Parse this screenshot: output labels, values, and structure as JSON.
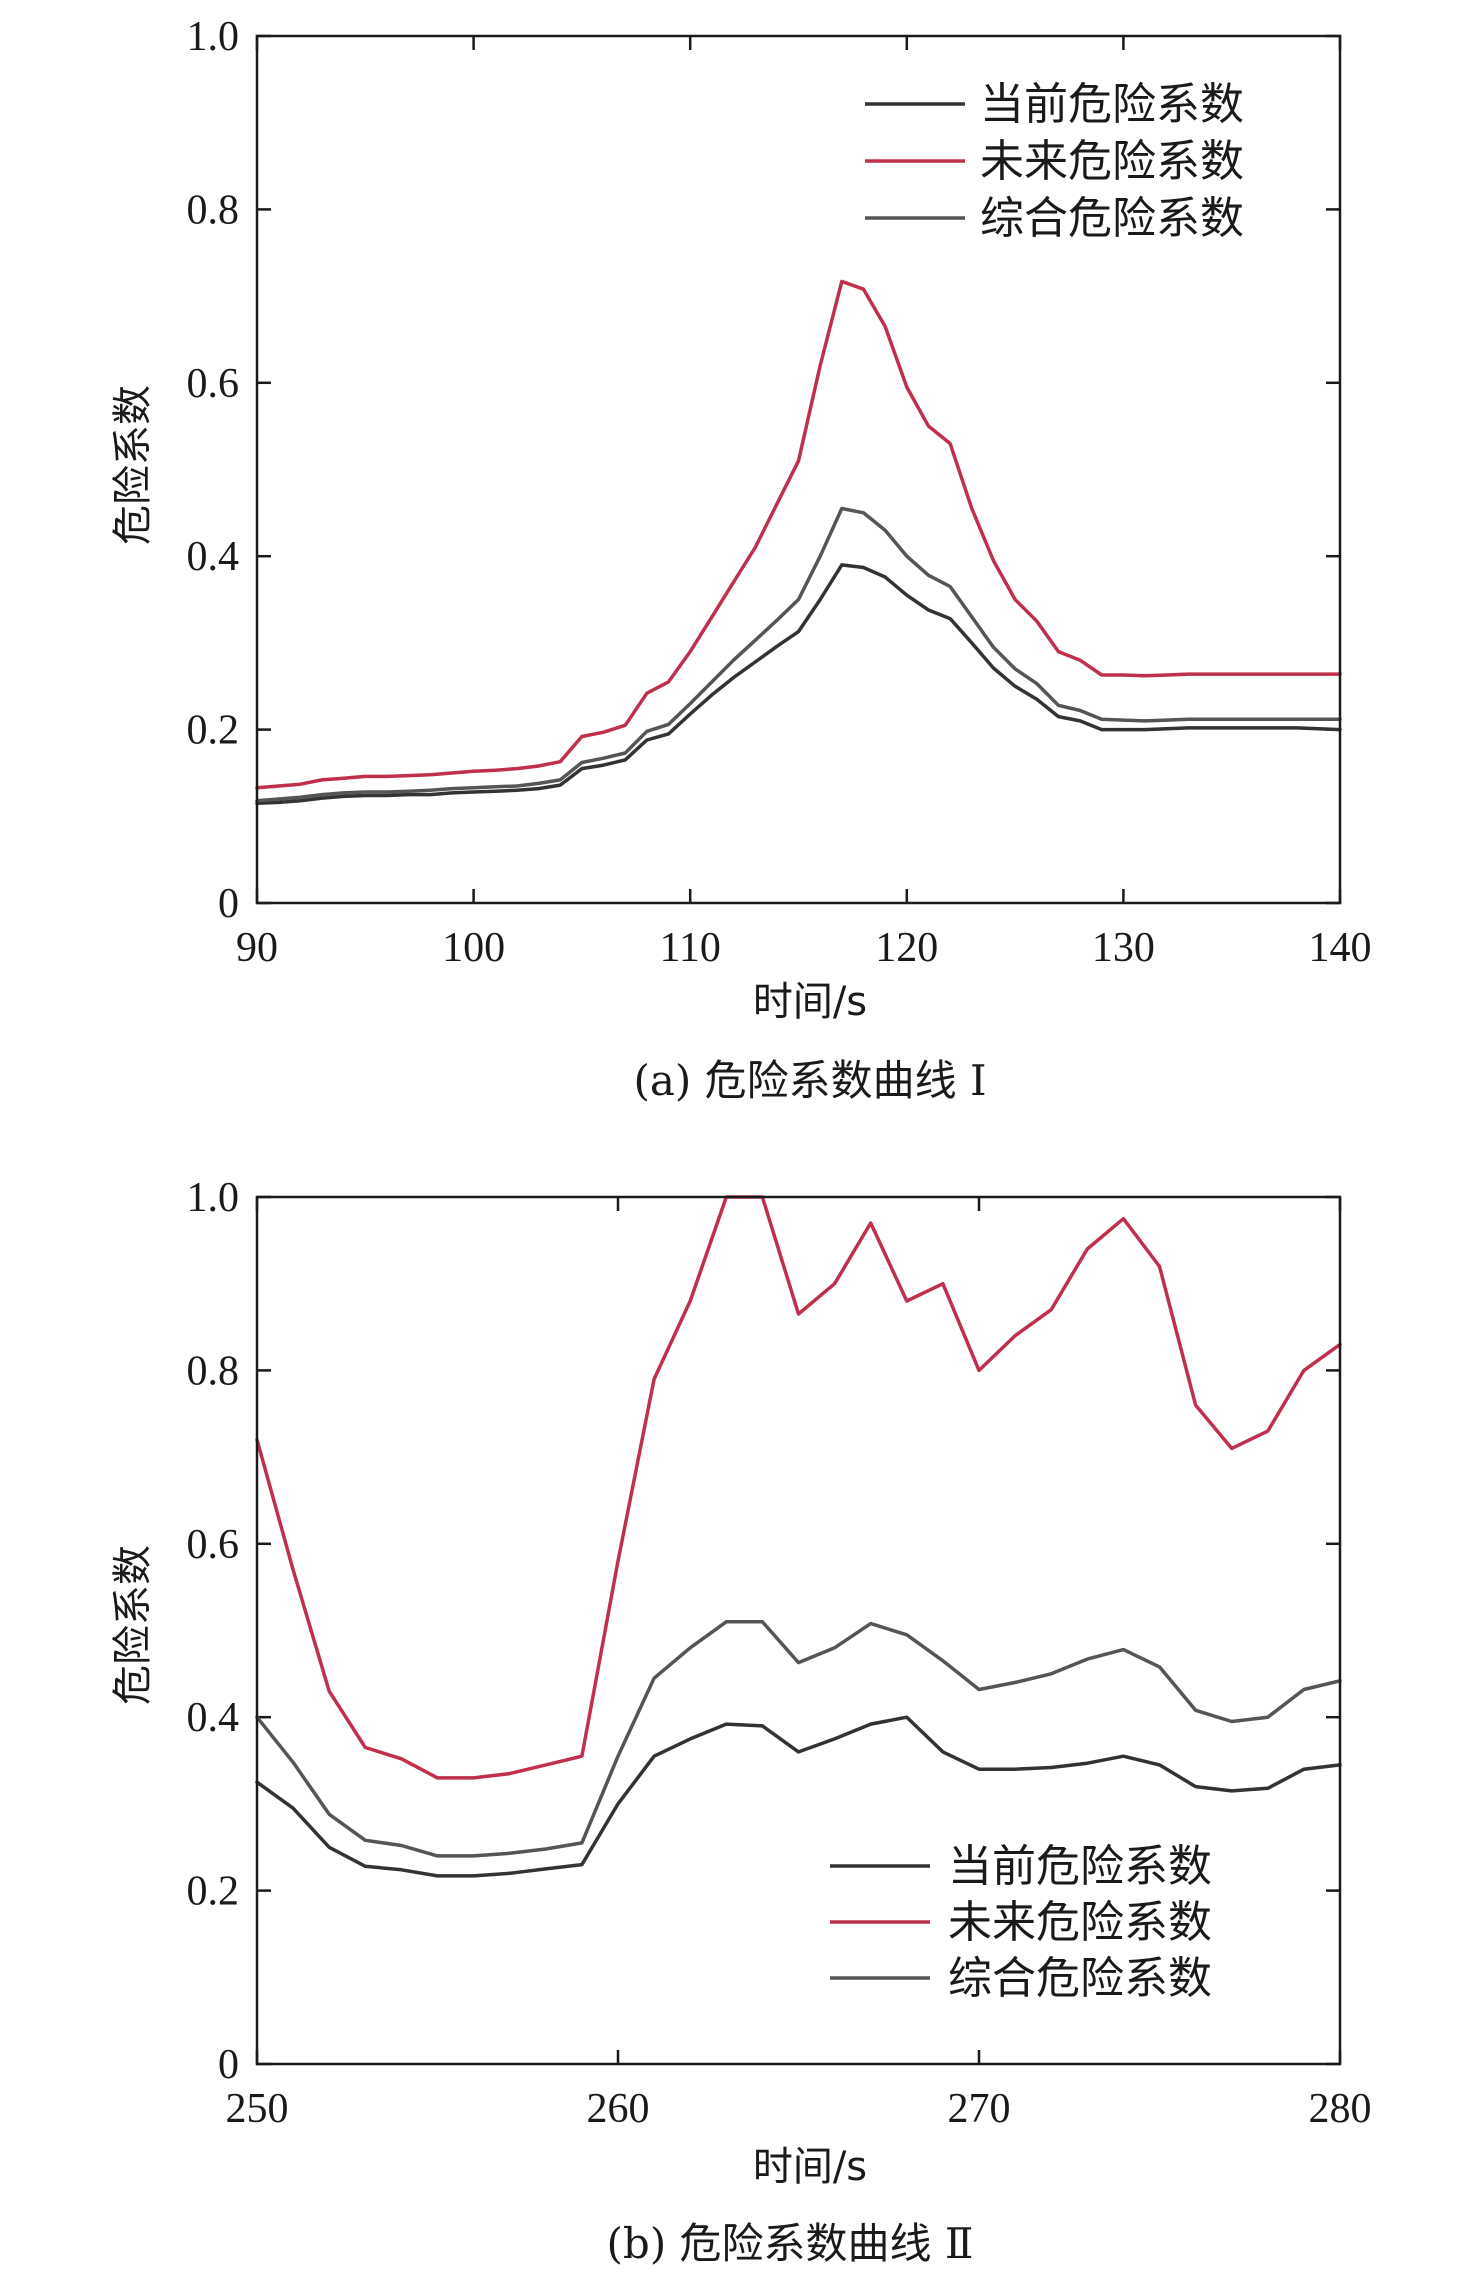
{
  "chart_data": [
    {
      "type": "line",
      "caption": "(a) 危险系数曲线 Ⅰ",
      "xlabel": "时间/s",
      "ylabel": "危险系数",
      "xlim": [
        90,
        140
      ],
      "ylim": [
        0,
        1.0
      ],
      "xticks": [
        "90",
        "100",
        "110",
        "120",
        "130",
        "140"
      ],
      "yticks": [
        "0",
        "0.2",
        "0.4",
        "0.6",
        "0.8",
        "1.0"
      ],
      "legend_position": "top-right",
      "x": [
        90,
        91,
        92,
        93,
        94,
        95,
        96,
        97,
        98,
        99,
        100,
        101,
        102,
        103,
        104,
        105,
        106,
        107,
        108,
        109,
        110,
        111,
        112,
        113,
        114,
        115,
        116,
        117,
        118,
        119,
        120,
        121,
        122,
        123,
        124,
        125,
        126,
        127,
        128,
        129,
        130,
        131,
        132,
        133,
        134,
        135,
        136,
        137,
        138,
        139,
        140
      ],
      "series": [
        {
          "name": "当前危险系数",
          "color": "#333333",
          "values": [
            0.115,
            0.116,
            0.118,
            0.121,
            0.123,
            0.124,
            0.124,
            0.125,
            0.125,
            0.127,
            0.128,
            0.129,
            0.13,
            0.132,
            0.136,
            0.155,
            0.159,
            0.165,
            0.188,
            0.195,
            0.218,
            0.24,
            0.26,
            0.278,
            0.296,
            0.313,
            0.35,
            0.39,
            0.387,
            0.376,
            0.355,
            0.338,
            0.328,
            0.3,
            0.271,
            0.25,
            0.235,
            0.215,
            0.21,
            0.2,
            0.2,
            0.2,
            0.201,
            0.202,
            0.202,
            0.202,
            0.202,
            0.202,
            0.202,
            0.201,
            0.2
          ]
        },
        {
          "name": "未来危险系数",
          "color": "#c0304c",
          "values": [
            0.133,
            0.135,
            0.137,
            0.142,
            0.144,
            0.146,
            0.146,
            0.147,
            0.148,
            0.15,
            0.152,
            0.153,
            0.155,
            0.158,
            0.163,
            0.192,
            0.197,
            0.205,
            0.242,
            0.255,
            0.29,
            0.33,
            0.37,
            0.41,
            0.46,
            0.51,
            0.62,
            0.717,
            0.708,
            0.665,
            0.595,
            0.55,
            0.53,
            0.455,
            0.395,
            0.35,
            0.325,
            0.29,
            0.28,
            0.263,
            0.263,
            0.262,
            0.263,
            0.264,
            0.264,
            0.264,
            0.264,
            0.264,
            0.264,
            0.264,
            0.264
          ]
        },
        {
          "name": "综合危险系数",
          "color": "#555555",
          "values": [
            0.118,
            0.12,
            0.122,
            0.125,
            0.127,
            0.128,
            0.128,
            0.129,
            0.13,
            0.132,
            0.133,
            0.134,
            0.135,
            0.138,
            0.142,
            0.162,
            0.167,
            0.173,
            0.198,
            0.206,
            0.23,
            0.255,
            0.28,
            0.303,
            0.326,
            0.35,
            0.4,
            0.455,
            0.45,
            0.43,
            0.4,
            0.378,
            0.365,
            0.33,
            0.295,
            0.27,
            0.253,
            0.228,
            0.222,
            0.212,
            0.211,
            0.21,
            0.211,
            0.212,
            0.212,
            0.212,
            0.212,
            0.212,
            0.212,
            0.212,
            0.212
          ]
        }
      ]
    },
    {
      "type": "line",
      "caption": "(b) 危险系数曲线 Ⅱ",
      "xlabel": "时间/s",
      "ylabel": "危险系数",
      "xlim": [
        250,
        280
      ],
      "ylim": [
        0,
        1.0
      ],
      "xticks": [
        "250",
        "260",
        "270",
        "280"
      ],
      "yticks": [
        "0",
        "0.2",
        "0.4",
        "0.6",
        "0.8",
        "1.0"
      ],
      "legend_position": "bottom-right",
      "x": [
        250,
        251,
        252,
        253,
        254,
        255,
        256,
        257,
        258,
        259,
        260,
        261,
        262,
        263,
        264,
        265,
        266,
        267,
        268,
        269,
        270,
        271,
        272,
        273,
        274,
        275,
        276,
        277,
        278,
        279,
        280
      ],
      "series": [
        {
          "name": "当前危险系数",
          "color": "#333333",
          "values": [
            0.325,
            0.295,
            0.25,
            0.228,
            0.224,
            0.217,
            0.217,
            0.22,
            0.225,
            0.23,
            0.3,
            0.355,
            0.375,
            0.392,
            0.39,
            0.36,
            0.375,
            0.392,
            0.4,
            0.36,
            0.34,
            0.34,
            0.342,
            0.347,
            0.355,
            0.345,
            0.32,
            0.315,
            0.318,
            0.34,
            0.345
          ]
        },
        {
          "name": "未来危险系数",
          "color": "#c0304c",
          "values": [
            0.72,
            0.57,
            0.43,
            0.365,
            0.352,
            0.33,
            0.33,
            0.335,
            0.345,
            0.355,
            0.58,
            0.79,
            0.88,
            1.0,
            1.0,
            0.865,
            0.9,
            0.97,
            0.88,
            0.9,
            0.8,
            0.84,
            0.87,
            0.94,
            0.975,
            0.92,
            0.76,
            0.71,
            0.73,
            0.8,
            0.83
          ]
        },
        {
          "name": "综合危险系数",
          "color": "#555555",
          "values": [
            0.4,
            0.348,
            0.288,
            0.258,
            0.252,
            0.24,
            0.24,
            0.243,
            0.248,
            0.255,
            0.355,
            0.445,
            0.48,
            0.51,
            0.51,
            0.463,
            0.48,
            0.508,
            0.495,
            0.465,
            0.432,
            0.44,
            0.45,
            0.467,
            0.478,
            0.458,
            0.408,
            0.395,
            0.4,
            0.432,
            0.442
          ]
        }
      ]
    }
  ]
}
